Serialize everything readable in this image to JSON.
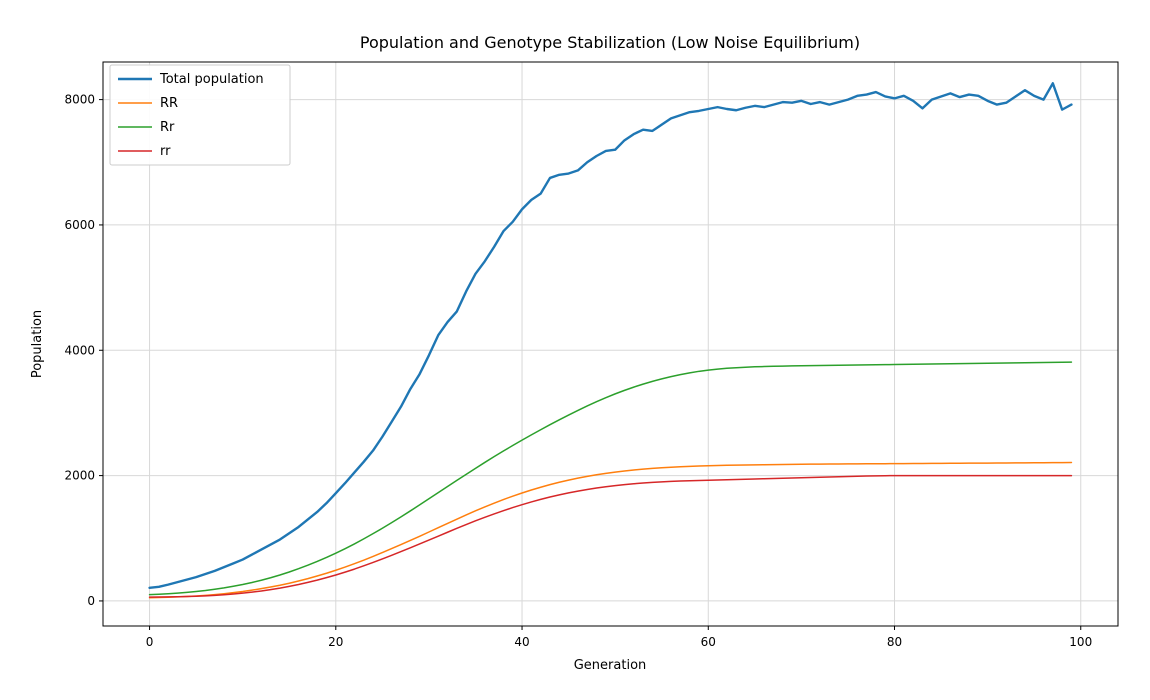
{
  "chart_data": {
    "type": "line",
    "title": "Population and Genotype Stabilization (Low Noise Equilibrium)",
    "xlabel": "Generation",
    "ylabel": "Population",
    "xlim": [
      -5.0,
      104.0
    ],
    "ylim": [
      -400.0,
      8600.0
    ],
    "xticks": [
      0,
      20,
      40,
      60,
      80,
      100
    ],
    "yticks": [
      0,
      2000,
      4000,
      6000,
      8000
    ],
    "x_tick_labels": [
      "0",
      "20",
      "40",
      "60",
      "80",
      "100"
    ],
    "y_tick_labels": [
      "0",
      "2000",
      "4000",
      "6000",
      "8000"
    ],
    "grid": true,
    "legend_location": "upper left",
    "series": [
      {
        "name": "Total population",
        "color": "#1f77b4",
        "x": [
          0,
          1,
          2,
          3,
          4,
          5,
          6,
          7,
          8,
          9,
          10,
          11,
          12,
          13,
          14,
          15,
          16,
          17,
          18,
          19,
          20,
          21,
          22,
          23,
          24,
          25,
          26,
          27,
          28,
          29,
          30,
          31,
          32,
          33,
          34,
          35,
          36,
          37,
          38,
          39,
          40,
          41,
          42,
          43,
          44,
          45,
          46,
          47,
          48,
          49,
          50,
          51,
          52,
          53,
          54,
          55,
          56,
          57,
          58,
          59,
          60,
          61,
          62,
          63,
          64,
          65,
          66,
          67,
          68,
          69,
          70,
          71,
          72,
          73,
          74,
          75,
          76,
          77,
          78,
          79,
          80,
          81,
          82,
          83,
          84,
          85,
          86,
          87,
          88,
          89,
          90,
          91,
          92,
          93,
          94,
          95,
          96,
          97,
          98,
          99
        ],
        "values": [
          210,
          225,
          260,
          300,
          340,
          380,
          430,
          480,
          540,
          600,
          660,
          740,
          820,
          900,
          980,
          1080,
          1180,
          1300,
          1420,
          1560,
          1720,
          1880,
          2050,
          2220,
          2400,
          2620,
          2860,
          3100,
          3380,
          3620,
          3920,
          4240,
          4450,
          4620,
          4940,
          5220,
          5420,
          5650,
          5900,
          6050,
          6250,
          6400,
          6500,
          6750,
          6800,
          6820,
          6870,
          7000,
          7100,
          7180,
          7200,
          7350,
          7450,
          7520,
          7500,
          7600,
          7700,
          7750,
          7800,
          7820,
          7850,
          7880,
          7850,
          7830,
          7870,
          7900,
          7880,
          7920,
          7960,
          7950,
          7980,
          7930,
          7960,
          7920,
          7960,
          8000,
          8060,
          8080,
          8120,
          8050,
          8020,
          8060,
          7980,
          7860,
          8000,
          8050,
          8100,
          8040,
          8080,
          8060,
          7980,
          7920,
          7950,
          8050,
          8150,
          8060,
          8000,
          8260,
          7840,
          7920
        ]
      },
      {
        "name": "RR",
        "color": "#ff7f0e",
        "x": [
          0,
          1,
          2,
          3,
          4,
          5,
          6,
          7,
          8,
          9,
          10,
          11,
          12,
          13,
          14,
          15,
          16,
          17,
          18,
          19,
          20,
          21,
          22,
          23,
          24,
          25,
          26,
          27,
          28,
          29,
          30,
          31,
          32,
          33,
          34,
          35,
          36,
          37,
          38,
          39,
          40,
          41,
          42,
          43,
          44,
          45,
          46,
          47,
          48,
          49,
          50,
          51,
          52,
          53,
          54,
          55,
          56,
          57,
          58,
          59,
          60,
          61,
          62,
          63,
          64,
          65,
          66,
          67,
          68,
          69,
          70,
          71,
          72,
          73,
          74,
          75,
          76,
          77,
          78,
          79,
          80,
          81,
          82,
          83,
          84,
          85,
          86,
          87,
          88,
          89,
          90,
          91,
          92,
          93,
          94,
          95,
          96,
          97,
          98,
          99
        ],
        "values": [
          50,
          54,
          58,
          64,
          70,
          78,
          88,
          100,
          115,
          132,
          150,
          172,
          196,
          222,
          250,
          282,
          318,
          356,
          398,
          442,
          490,
          540,
          594,
          650,
          710,
          772,
          836,
          900,
          966,
          1032,
          1100,
          1168,
          1236,
          1304,
          1372,
          1438,
          1500,
          1560,
          1618,
          1672,
          1722,
          1770,
          1814,
          1856,
          1894,
          1928,
          1960,
          1988,
          2014,
          2036,
          2056,
          2074,
          2090,
          2104,
          2116,
          2126,
          2134,
          2142,
          2148,
          2154,
          2158,
          2162,
          2166,
          2168,
          2170,
          2172,
          2174,
          2176,
          2178,
          2180,
          2182,
          2183,
          2184,
          2185,
          2186,
          2187,
          2188,
          2189,
          2190,
          2190,
          2191,
          2192,
          2193,
          2194,
          2195,
          2196,
          2197,
          2198,
          2199,
          2200,
          2200,
          2201,
          2202,
          2203,
          2204,
          2205,
          2206,
          2207,
          2208,
          2210
        ]
      },
      {
        "name": "Rr",
        "color": "#2ca02c",
        "x": [
          0,
          1,
          2,
          3,
          4,
          5,
          6,
          7,
          8,
          9,
          10,
          11,
          12,
          13,
          14,
          15,
          16,
          17,
          18,
          19,
          20,
          21,
          22,
          23,
          24,
          25,
          26,
          27,
          28,
          29,
          30,
          31,
          32,
          33,
          34,
          35,
          36,
          37,
          38,
          39,
          40,
          41,
          42,
          43,
          44,
          45,
          46,
          47,
          48,
          49,
          50,
          51,
          52,
          53,
          54,
          55,
          56,
          57,
          58,
          59,
          60,
          61,
          62,
          63,
          64,
          65,
          66,
          67,
          68,
          69,
          70,
          71,
          72,
          73,
          74,
          75,
          76,
          77,
          78,
          79,
          80,
          81,
          82,
          83,
          84,
          85,
          86,
          87,
          88,
          89,
          90,
          91,
          92,
          93,
          94,
          95,
          96,
          97,
          98,
          99
        ],
        "values": [
          100,
          106,
          114,
          124,
          136,
          150,
          166,
          186,
          208,
          234,
          262,
          294,
          330,
          370,
          414,
          462,
          514,
          570,
          630,
          694,
          762,
          834,
          910,
          990,
          1074,
          1160,
          1250,
          1342,
          1436,
          1532,
          1630,
          1728,
          1826,
          1924,
          2020,
          2116,
          2210,
          2302,
          2392,
          2480,
          2566,
          2650,
          2732,
          2812,
          2890,
          2966,
          3040,
          3112,
          3180,
          3244,
          3304,
          3360,
          3412,
          3460,
          3504,
          3544,
          3580,
          3612,
          3640,
          3664,
          3684,
          3700,
          3712,
          3722,
          3730,
          3736,
          3740,
          3744,
          3747,
          3750,
          3752,
          3754,
          3756,
          3758,
          3760,
          3762,
          3764,
          3766,
          3768,
          3770,
          3772,
          3774,
          3776,
          3778,
          3780,
          3782,
          3784,
          3786,
          3788,
          3790,
          3792,
          3794,
          3796,
          3798,
          3800,
          3802,
          3804,
          3806,
          3808,
          3810
        ]
      },
      {
        "name": "rr",
        "color": "#d62728",
        "x": [
          0,
          1,
          2,
          3,
          4,
          5,
          6,
          7,
          8,
          9,
          10,
          11,
          12,
          13,
          14,
          15,
          16,
          17,
          18,
          19,
          20,
          21,
          22,
          23,
          24,
          25,
          26,
          27,
          28,
          29,
          30,
          31,
          32,
          33,
          34,
          35,
          36,
          37,
          38,
          39,
          40,
          41,
          42,
          43,
          44,
          45,
          46,
          47,
          48,
          49,
          50,
          51,
          52,
          53,
          54,
          55,
          56,
          57,
          58,
          59,
          60,
          61,
          62,
          63,
          64,
          65,
          66,
          67,
          68,
          69,
          70,
          71,
          72,
          73,
          74,
          75,
          76,
          77,
          78,
          79,
          80,
          81,
          82,
          83,
          84,
          85,
          86,
          87,
          88,
          89,
          90,
          91,
          92,
          93,
          94,
          95,
          96,
          97,
          98,
          99
        ],
        "values": [
          60,
          62,
          64,
          66,
          70,
          74,
          80,
          88,
          98,
          110,
          124,
          140,
          158,
          180,
          204,
          232,
          262,
          296,
          332,
          372,
          414,
          460,
          508,
          560,
          614,
          670,
          728,
          788,
          848,
          910,
          972,
          1034,
          1096,
          1158,
          1218,
          1278,
          1334,
          1388,
          1440,
          1490,
          1536,
          1580,
          1620,
          1658,
          1692,
          1724,
          1752,
          1778,
          1802,
          1822,
          1840,
          1856,
          1870,
          1882,
          1892,
          1900,
          1907,
          1913,
          1918,
          1922,
          1926,
          1930,
          1934,
          1938,
          1942,
          1946,
          1950,
          1954,
          1958,
          1962,
          1966,
          1970,
          1974,
          1978,
          1982,
          1986,
          1990,
          1993,
          1996,
          1998,
          2000,
          2000,
          2000,
          2000,
          2000,
          2000,
          2000,
          2000,
          2000,
          2000,
          2000,
          2000,
          2000,
          2000,
          2000,
          2000,
          2000,
          2000,
          2000,
          2000
        ]
      }
    ]
  }
}
